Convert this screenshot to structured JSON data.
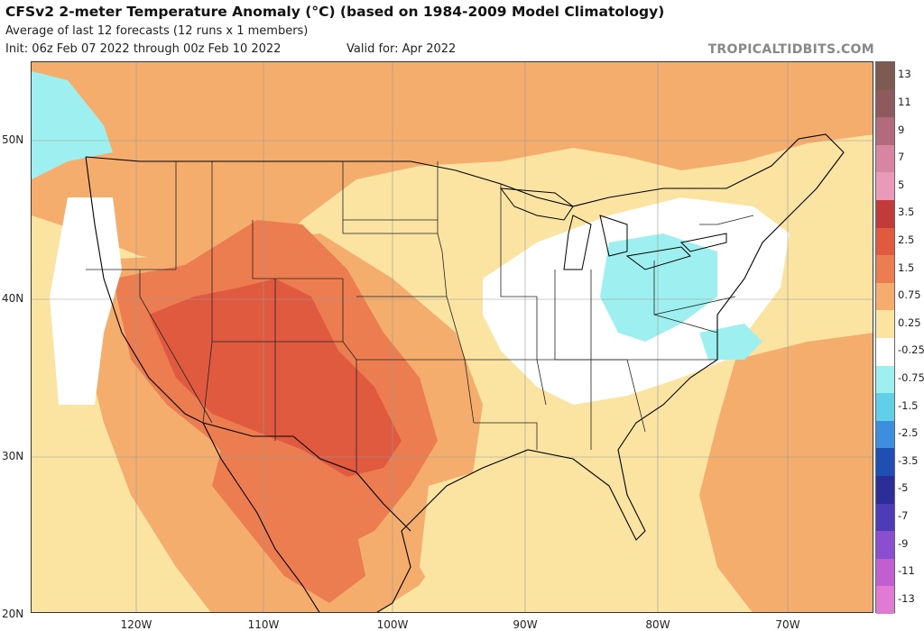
{
  "header": {
    "title": "CFSv2 2-meter Temperature Anomaly (°C) (based on 1984-2009 Model Climatology)",
    "subtitle": "Average of last 12 forecasts (12 runs x 1 members)",
    "init": "Init: 06z Feb 07 2022 through 00z Feb 10 2022",
    "valid": "Valid for: Apr 2022",
    "credit": "TROPICALTIDBITS.COM"
  },
  "axes": {
    "lat_labels": [
      "50N",
      "40N",
      "30N",
      "20N"
    ],
    "lon_labels": [
      "120W",
      "110W",
      "100W",
      "90W",
      "80W",
      "70W"
    ]
  },
  "colorbar": {
    "labels": [
      "13",
      "11",
      "9",
      "7",
      "5",
      "3.5",
      "2.5",
      "1.5",
      "0.75",
      "0.25",
      "-0.25",
      "-0.75",
      "-1.5",
      "-2.5",
      "-3.5",
      "-5",
      "-7",
      "-9",
      "-11",
      "-13"
    ],
    "colors": [
      "#7d5a52",
      "#8f5a5d",
      "#b26a7d",
      "#d685a2",
      "#e89ab8",
      "#c23b3b",
      "#e05a40",
      "#ec7d50",
      "#f5ad6e",
      "#fbe3a2",
      "#ffffff",
      "#9ef0f0",
      "#61cfe8",
      "#3e8ee0",
      "#1f4fb3",
      "#2d2d9a",
      "#4d3bb8",
      "#8a4fd1",
      "#c25fd0",
      "#e07ad2"
    ]
  },
  "colors": {
    "land_outline": "#000000",
    "state_line": "#222222",
    "warm_light": "#fbe3a2",
    "warm_mid": "#f5ad6e",
    "warm_strong": "#ec7d50",
    "warm_hot": "#e05a40",
    "neutral": "#ffffff",
    "cool": "#9ef0f0"
  }
}
